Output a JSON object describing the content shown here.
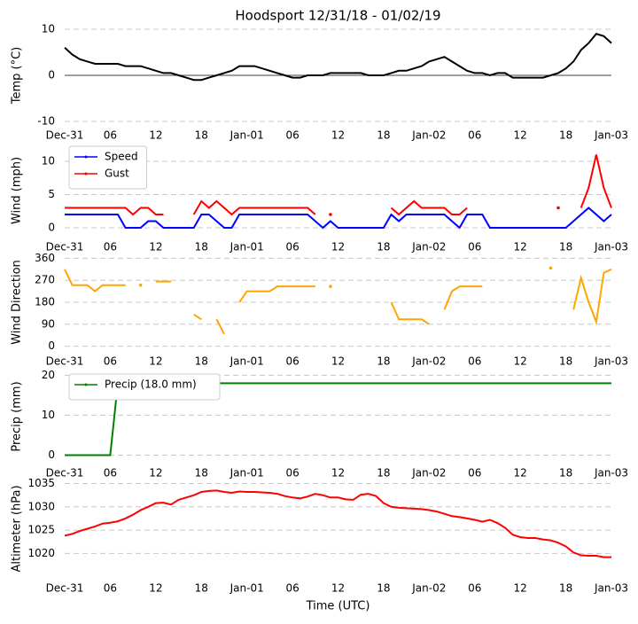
{
  "chart_data": [
    {
      "type": "line",
      "title": "Hoodsport 12/31/18 - 01/02/19",
      "ylabel": "Temp ($^\\circ$C)",
      "color": "#000000",
      "zero_line": true,
      "grid": true,
      "x": [
        0,
        1,
        2,
        3,
        4,
        5,
        6,
        7,
        8,
        9,
        10,
        11,
        12,
        13,
        14,
        15,
        16,
        17,
        18,
        19,
        20,
        21,
        22,
        23,
        24,
        25,
        26,
        27,
        28,
        29,
        30,
        31,
        32,
        33,
        34,
        35,
        36,
        37,
        38,
        39,
        40,
        41,
        42,
        43,
        44,
        45,
        46,
        47,
        48,
        49,
        50,
        51,
        52,
        53,
        54,
        55,
        56,
        57,
        58,
        59,
        60,
        61,
        62,
        63,
        64,
        65,
        66,
        67,
        68,
        69,
        70,
        71,
        72
      ],
      "values": [
        6,
        4.5,
        3.5,
        3,
        2.5,
        2.5,
        2.5,
        2.5,
        2,
        2,
        2,
        1.5,
        1,
        0.5,
        0.5,
        0,
        -0.5,
        -1,
        -1,
        -0.5,
        0,
        0.5,
        1,
        2,
        2,
        2,
        1.5,
        1,
        0.5,
        0,
        -0.5,
        -0.5,
        0,
        0,
        0,
        0.5,
        0.5,
        0.5,
        0.5,
        0.5,
        0,
        0,
        0,
        0.5,
        1,
        1,
        1.5,
        2,
        3,
        3.5,
        4,
        3,
        2,
        1,
        0.5,
        0.5,
        0,
        0.5,
        0.5,
        -0.5,
        -0.5,
        -0.5,
        -0.5,
        -0.5,
        0,
        0.5,
        1.5,
        3,
        5.5,
        7,
        9,
        8.5,
        7
      ],
      "xlim": [
        0,
        72
      ],
      "xticks": [
        {
          "value": 0,
          "label": "Dec-31"
        },
        {
          "value": 6,
          "label": "06"
        },
        12,
        18,
        {
          "value": 24,
          "label": "Jan-01"
        },
        {
          "value": 30,
          "label": "06"
        },
        {
          "value": 36,
          "label": "12"
        },
        {
          "value": 42,
          "label": "18"
        },
        {
          "value": 48,
          "label": "Jan-02"
        },
        {
          "value": 54,
          "label": "06"
        },
        {
          "value": 60,
          "label": "12"
        },
        {
          "value": 66,
          "label": "18"
        },
        {
          "value": 72,
          "label": "Jan-03"
        }
      ],
      "ylim": [
        -10,
        10
      ],
      "yticks": [
        -10,
        0,
        10
      ]
    },
    {
      "type": "line",
      "ylabel": "Wind (mph)",
      "grid": true,
      "legend": "upper left",
      "x": [
        0,
        1,
        2,
        3,
        4,
        5,
        6,
        7,
        8,
        9,
        10,
        11,
        12,
        13,
        14,
        15,
        16,
        17,
        18,
        19,
        20,
        21,
        22,
        23,
        24,
        25,
        26,
        27,
        28,
        29,
        30,
        31,
        32,
        33,
        34,
        35,
        36,
        37,
        38,
        39,
        40,
        41,
        42,
        43,
        44,
        45,
        46,
        47,
        48,
        49,
        50,
        51,
        52,
        53,
        54,
        55,
        56,
        57,
        58,
        59,
        60,
        61,
        62,
        63,
        64,
        65,
        66,
        67,
        68,
        69,
        70,
        71,
        72
      ],
      "series": [
        {
          "name": "Speed",
          "color": "#0000ff",
          "values": [
            2,
            2,
            2,
            2,
            2,
            2,
            2,
            2,
            0,
            0,
            0,
            1,
            1,
            0,
            0,
            0,
            0,
            0,
            2,
            2,
            1,
            0,
            0,
            2,
            2,
            2,
            2,
            2,
            2,
            2,
            2,
            2,
            2,
            1,
            0,
            1,
            0,
            0,
            0,
            0,
            0,
            0,
            0,
            2,
            1,
            2,
            2,
            2,
            2,
            2,
            2,
            1,
            0,
            2,
            2,
            2,
            0,
            0,
            0,
            0,
            0,
            0,
            0,
            0,
            0,
            0,
            0,
            1,
            2,
            3,
            2,
            1,
            2
          ]
        },
        {
          "name": "Gust",
          "color": "#ff0000",
          "values": [
            3,
            3,
            3,
            3,
            3,
            3,
            3,
            3,
            3,
            2,
            3,
            3,
            2,
            2,
            null,
            null,
            null,
            2,
            4,
            3,
            4,
            3,
            2,
            3,
            3,
            3,
            3,
            3,
            3,
            3,
            3,
            3,
            3,
            2,
            null,
            2,
            null,
            null,
            null,
            null,
            null,
            null,
            null,
            3,
            2,
            3,
            4,
            3,
            3,
            3,
            3,
            2,
            2,
            3,
            null,
            null,
            null,
            null,
            null,
            null,
            null,
            null,
            null,
            null,
            null,
            3,
            null,
            null,
            3,
            6,
            11,
            6,
            3
          ]
        }
      ],
      "xlim": [
        0,
        72
      ],
      "xticks": [
        {
          "value": 0,
          "label": "Dec-31"
        },
        {
          "value": 6,
          "label": "06"
        },
        12,
        18,
        {
          "value": 24,
          "label": "Jan-01"
        },
        {
          "value": 30,
          "label": "06"
        },
        {
          "value": 36,
          "label": "12"
        },
        {
          "value": 42,
          "label": "18"
        },
        {
          "value": 48,
          "label": "Jan-02"
        },
        {
          "value": 54,
          "label": "06"
        },
        {
          "value": 60,
          "label": "12"
        },
        {
          "value": 66,
          "label": "18"
        },
        {
          "value": 72,
          "label": "Jan-03"
        }
      ],
      "ylim": [
        -0.8,
        12
      ],
      "yticks": [
        0,
        5,
        10
      ]
    },
    {
      "type": "line",
      "ylabel": "Wind Direction",
      "color": "#ffa500",
      "grid": true,
      "x": [
        0,
        1,
        2,
        3,
        4,
        5,
        6,
        7,
        8,
        9,
        10,
        11,
        12,
        13,
        14,
        15,
        16,
        17,
        18,
        19,
        20,
        21,
        22,
        23,
        24,
        25,
        26,
        27,
        28,
        29,
        30,
        31,
        32,
        33,
        34,
        35,
        36,
        37,
        38,
        39,
        40,
        41,
        42,
        43,
        44,
        45,
        46,
        47,
        48,
        49,
        50,
        51,
        52,
        53,
        54,
        55,
        56,
        57,
        58,
        59,
        60,
        61,
        62,
        63,
        64,
        65,
        66,
        67,
        68,
        69,
        70,
        71,
        72
      ],
      "values": [
        315,
        250,
        250,
        250,
        225,
        250,
        250,
        250,
        250,
        null,
        250,
        null,
        265,
        265,
        265,
        null,
        null,
        130,
        110,
        null,
        110,
        50,
        null,
        180,
        225,
        225,
        225,
        225,
        245,
        245,
        245,
        245,
        245,
        245,
        null,
        245,
        null,
        null,
        null,
        null,
        null,
        null,
        null,
        180,
        110,
        110,
        110,
        110,
        90,
        null,
        150,
        225,
        245,
        245,
        245,
        245,
        null,
        null,
        null,
        null,
        null,
        null,
        null,
        null,
        320,
        null,
        null,
        150,
        280,
        180,
        100,
        300,
        315
      ],
      "xlim": [
        0,
        72
      ],
      "xticks": [
        {
          "value": 0,
          "label": "Dec-31"
        },
        {
          "value": 6,
          "label": "06"
        },
        12,
        18,
        {
          "value": 24,
          "label": "Jan-01"
        },
        {
          "value": 30,
          "label": "06"
        },
        {
          "value": 36,
          "label": "12"
        },
        {
          "value": 42,
          "label": "18"
        },
        {
          "value": 48,
          "label": "Jan-02"
        },
        {
          "value": 54,
          "label": "06"
        },
        {
          "value": 60,
          "label": "12"
        },
        {
          "value": 66,
          "label": "18"
        },
        {
          "value": 72,
          "label": "Jan-03"
        }
      ],
      "ylim": [
        -5,
        365
      ],
      "yticks": [
        0,
        90,
        180,
        270,
        360
      ]
    },
    {
      "type": "line",
      "ylabel": "Precip (mm)",
      "grid": true,
      "legend": "upper left",
      "x": [
        0,
        1,
        2,
        3,
        4,
        5,
        6,
        7,
        8,
        9,
        10,
        11,
        12,
        13,
        14,
        15,
        16,
        17,
        18,
        19,
        20,
        21,
        22,
        23,
        24,
        25,
        26,
        27,
        28,
        29,
        30,
        31,
        32,
        33,
        34,
        35,
        36,
        37,
        38,
        39,
        40,
        41,
        42,
        43,
        44,
        45,
        46,
        47,
        48,
        49,
        50,
        51,
        52,
        53,
        54,
        55,
        56,
        57,
        58,
        59,
        60,
        61,
        62,
        63,
        64,
        65,
        66,
        67,
        68,
        69,
        70,
        71,
        72
      ],
      "series": [
        {
          "name": "Precip (18.0 mm)",
          "color": "#008000",
          "values": [
            0,
            0,
            0,
            0,
            0,
            0,
            0,
            18,
            18,
            18,
            18,
            18,
            18,
            18,
            18,
            18,
            18,
            18,
            18,
            18,
            18,
            18,
            18,
            18,
            18,
            18,
            18,
            18,
            18,
            18,
            18,
            18,
            18,
            18,
            18,
            18,
            18,
            18,
            18,
            18,
            18,
            18,
            18,
            18,
            18,
            18,
            18,
            18,
            18,
            18,
            18,
            18,
            18,
            18,
            18,
            18,
            18,
            18,
            18,
            18,
            18,
            18,
            18,
            18,
            18,
            18,
            18,
            18,
            18,
            18,
            18,
            18,
            18
          ]
        }
      ],
      "xlim": [
        0,
        72
      ],
      "xticks": [
        {
          "value": 0,
          "label": "Dec-31"
        },
        {
          "value": 6,
          "label": "06"
        },
        12,
        18,
        {
          "value": 24,
          "label": "Jan-01"
        },
        {
          "value": 30,
          "label": "06"
        },
        {
          "value": 36,
          "label": "12"
        },
        {
          "value": 42,
          "label": "18"
        },
        {
          "value": 48,
          "label": "Jan-02"
        },
        {
          "value": 54,
          "label": "06"
        },
        {
          "value": 60,
          "label": "12"
        },
        {
          "value": 66,
          "label": "18"
        },
        {
          "value": 72,
          "label": "Jan-03"
        }
      ],
      "ylim": [
        -1,
        20.3
      ],
      "yticks": [
        0,
        10,
        20
      ]
    },
    {
      "type": "line",
      "ylabel": "Altimeter (hPa)",
      "xlabel": "Time (UTC)",
      "color": "#ff0000",
      "grid": true,
      "x": [
        0,
        1,
        2,
        3,
        4,
        5,
        6,
        7,
        8,
        9,
        10,
        11,
        12,
        13,
        14,
        15,
        16,
        17,
        18,
        19,
        20,
        21,
        22,
        23,
        24,
        25,
        26,
        27,
        28,
        29,
        30,
        31,
        32,
        33,
        34,
        35,
        36,
        37,
        38,
        39,
        40,
        41,
        42,
        43,
        44,
        45,
        46,
        47,
        48,
        49,
        50,
        51,
        52,
        53,
        54,
        55,
        56,
        57,
        58,
        59,
        60,
        61,
        62,
        63,
        64,
        65,
        66,
        67,
        68,
        69,
        70,
        71,
        72
      ],
      "values": [
        1023.8,
        1024.2,
        1024.8,
        1025.3,
        1025.8,
        1026.4,
        1026.6,
        1026.9,
        1027.5,
        1028.3,
        1029.3,
        1030,
        1030.8,
        1030.9,
        1030.5,
        1031.5,
        1032,
        1032.5,
        1033.2,
        1033.4,
        1033.5,
        1033.2,
        1033,
        1033.3,
        1033.2,
        1033.2,
        1033.1,
        1033,
        1032.8,
        1032.3,
        1032,
        1031.8,
        1032.2,
        1032.8,
        1032.5,
        1032,
        1032,
        1031.6,
        1031.5,
        1032.6,
        1032.8,
        1032.3,
        1030.8,
        1030,
        1029.8,
        1029.7,
        1029.6,
        1029.5,
        1029.3,
        1029,
        1028.5,
        1028,
        1027.8,
        1027.5,
        1027.2,
        1026.8,
        1027.2,
        1026.5,
        1025.5,
        1024,
        1023.5,
        1023.3,
        1023.3,
        1023,
        1022.8,
        1022.3,
        1021.5,
        1020.2,
        1019.6,
        1019.5,
        1019.5,
        1019.2,
        1019.2
      ],
      "xlim": [
        0,
        72
      ],
      "xticks": [
        {
          "value": 0,
          "label": "Dec-31"
        },
        {
          "value": 6,
          "label": "06"
        },
        12,
        18,
        {
          "value": 24,
          "label": "Jan-01"
        },
        {
          "value": 30,
          "label": "06"
        },
        {
          "value": 36,
          "label": "12"
        },
        {
          "value": 42,
          "label": "18"
        },
        {
          "value": 48,
          "label": "Jan-02"
        },
        {
          "value": 54,
          "label": "06"
        },
        {
          "value": 60,
          "label": "12"
        },
        {
          "value": 66,
          "label": "18"
        },
        {
          "value": 72,
          "label": "Jan-03"
        }
      ],
      "ylim": [
        1015.5,
        1035.1
      ],
      "yticks": [
        1020,
        1025,
        1030,
        1035
      ]
    }
  ]
}
